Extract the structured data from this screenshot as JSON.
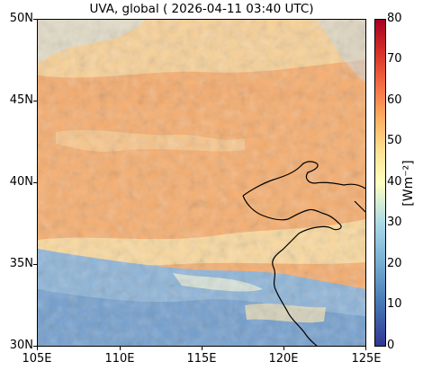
{
  "title": "UVA, global ( 2026-04-11 03:40 UTC)",
  "lat_labels": [
    "50N",
    "45N",
    "40N",
    "35N",
    "30N"
  ],
  "lon_labels": [
    "105E",
    "110E",
    "115E",
    "120E",
    "125E"
  ],
  "colorbar": {
    "ticks": [
      "80",
      "70",
      "60",
      "50",
      "40",
      "30",
      "20",
      "10",
      "0"
    ],
    "unit": "[Wm⁻²]",
    "range": [
      0,
      80
    ],
    "colormap": "RdYlBu_r"
  },
  "colors": {
    "field_main": "#f8b070",
    "field_north_light": "#fad59a",
    "cloud_cover": "#7fa7d2",
    "coastline": "#000000"
  }
}
